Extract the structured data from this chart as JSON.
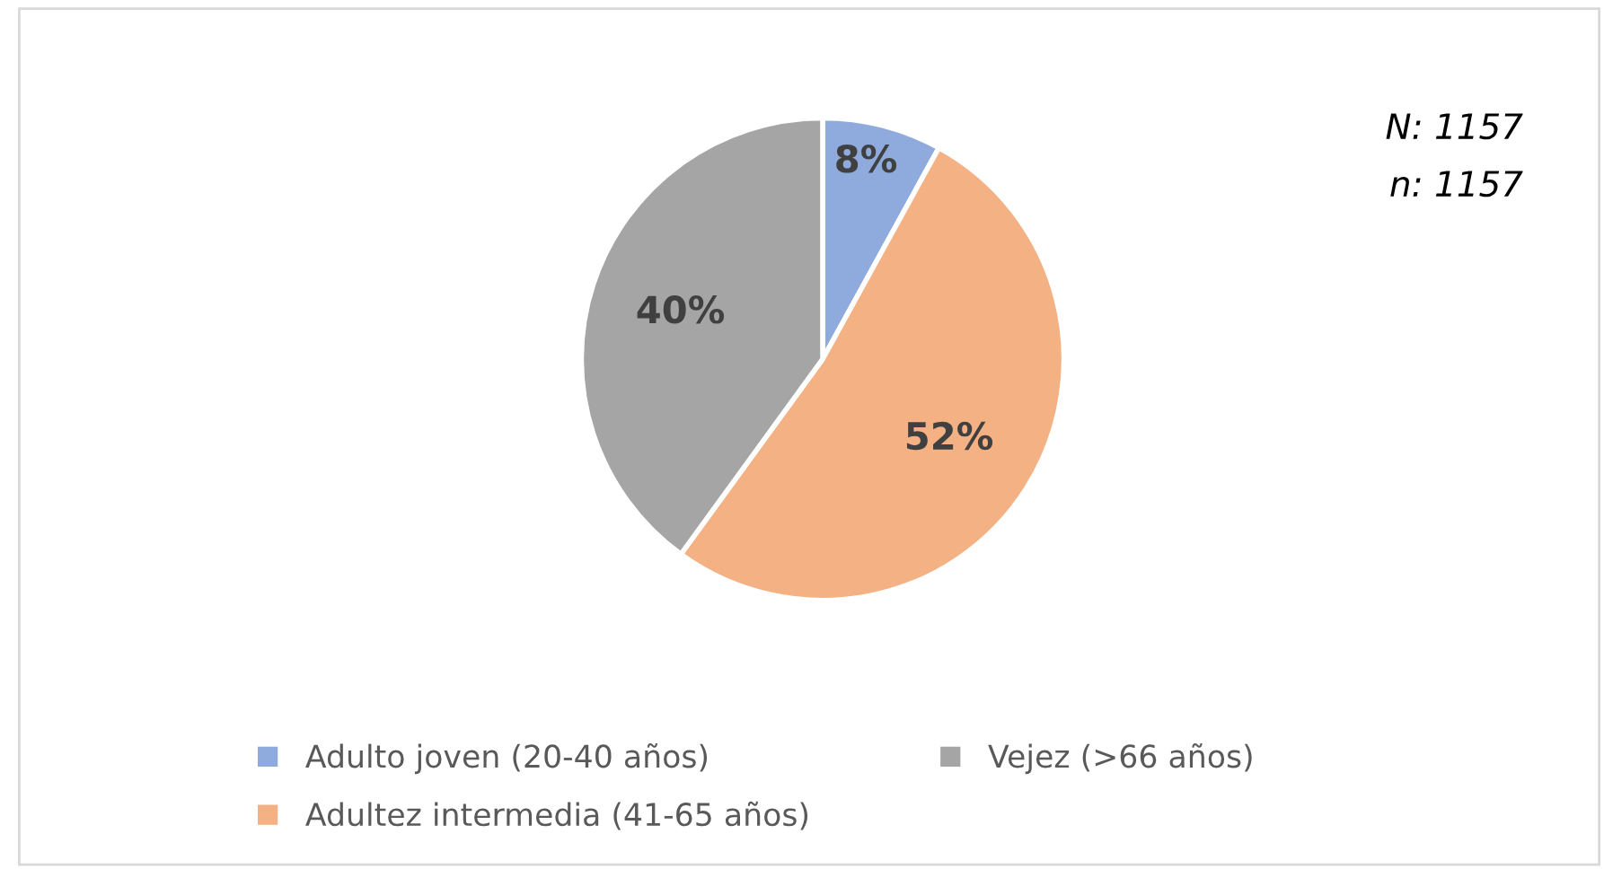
{
  "chart_data": {
    "type": "pie",
    "categories": [
      "Adulto joven (20-40 años)",
      "Adultez intermedia (41-65 años)",
      "Vejez (>66 años)"
    ],
    "values": [
      8,
      52,
      40
    ],
    "colors": [
      "#8faadc",
      "#f4b183",
      "#a5a5a5"
    ],
    "value_labels": [
      "8%",
      "52%",
      "40%"
    ],
    "annotations": [
      "N: 1157",
      "n: 1157"
    ],
    "legend": "bottom"
  }
}
